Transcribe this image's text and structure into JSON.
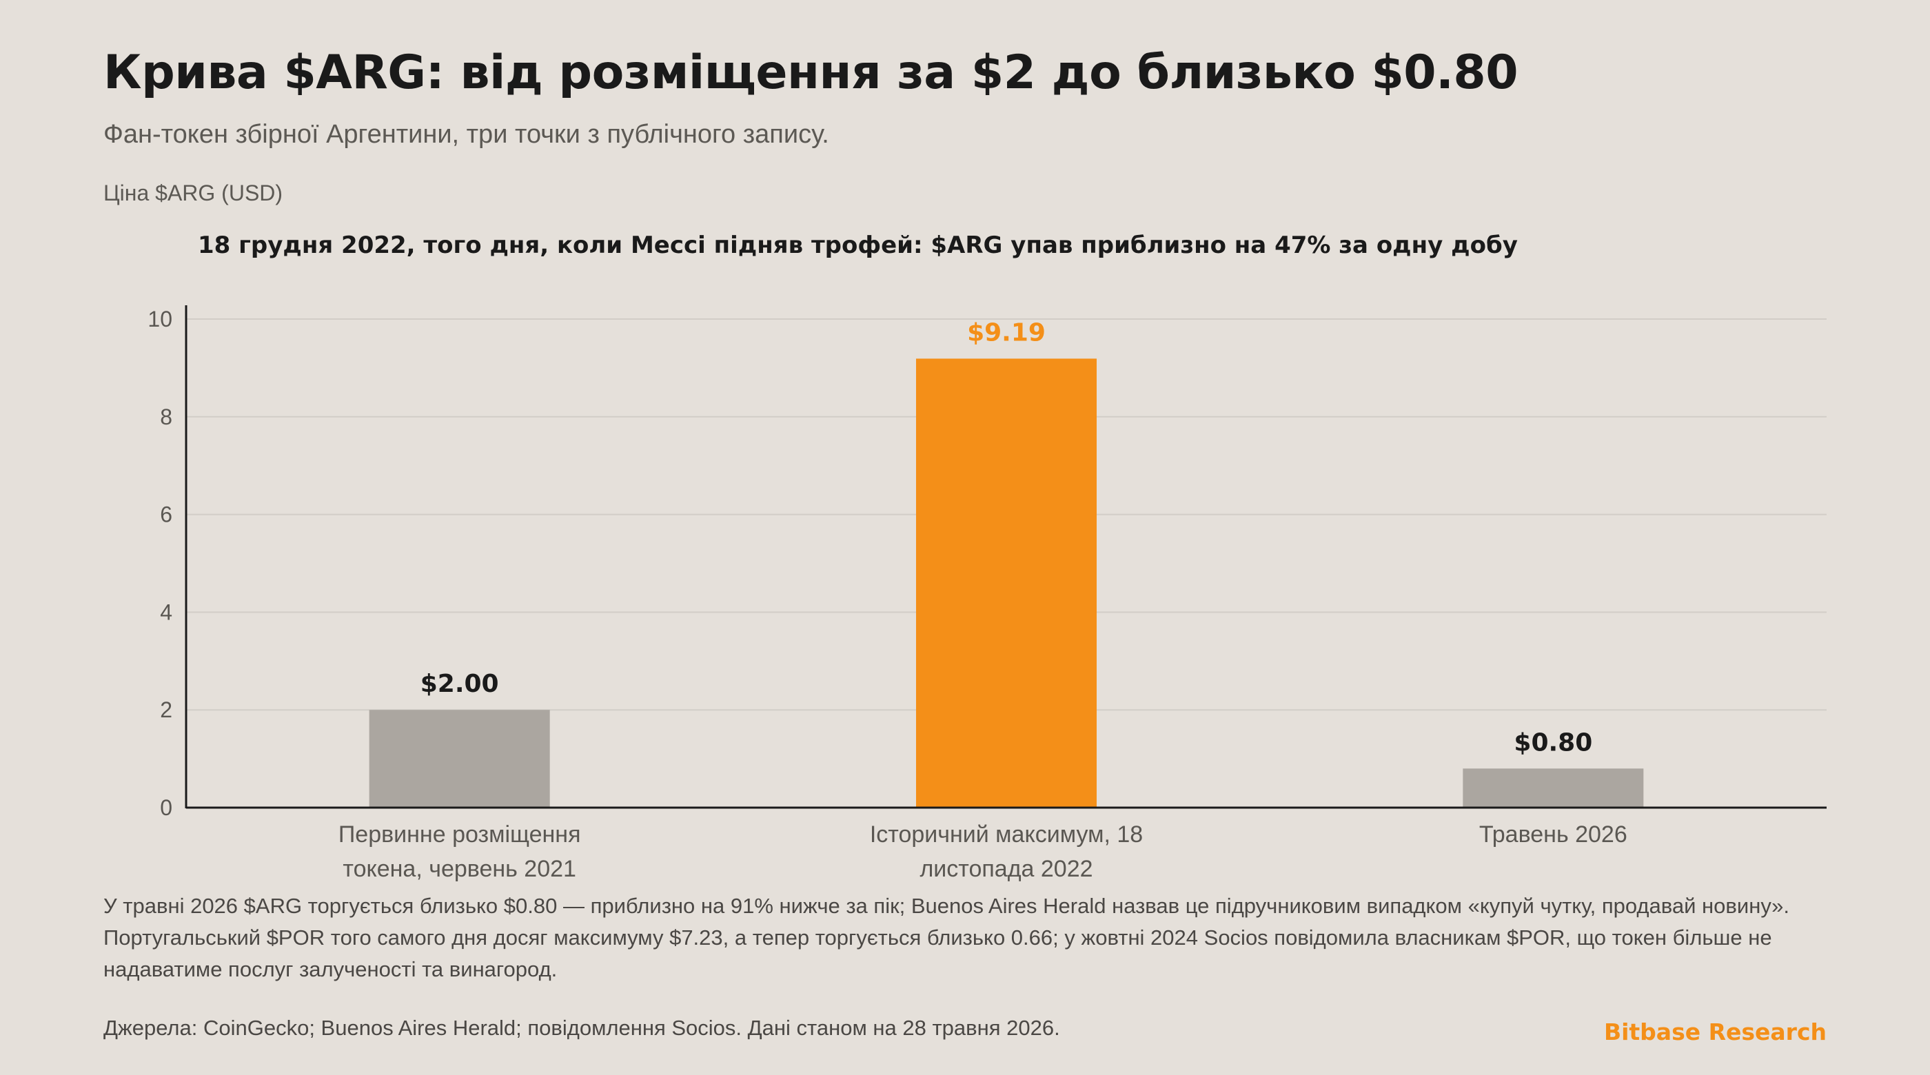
{
  "header": {
    "title": "Крива $ARG: від розміщення за $2 до близько $0.80",
    "subtitle": "Фан-токен збірної Аргентини, три точки з публічного запису.",
    "unit_label": "Ціна $ARG (USD)",
    "annotation": "18 грудня 2022, того дня, коли Мессі підняв трофей: $ARG упав приблизно на 47% за одну добу"
  },
  "chart_data": {
    "type": "bar",
    "title": "Крива $ARG: від розміщення за $2 до близько $0.80",
    "ylabel": "Ціна $ARG (USD)",
    "xlabel": "",
    "ylim": [
      0,
      10
    ],
    "y_ticks": [
      0,
      2,
      4,
      6,
      8,
      10
    ],
    "grid": true,
    "categories": [
      [
        "Первинне розміщення",
        "токена, червень 2021"
      ],
      [
        "Історичний максимум, 18",
        "листопада 2022"
      ],
      [
        "Травень 2026"
      ]
    ],
    "values": [
      2.0,
      9.19,
      0.8
    ],
    "value_labels": [
      "$2.00",
      "$9.19",
      "$0.80"
    ],
    "highlight_index": 1
  },
  "colors": {
    "background": "#e5e0da",
    "bar": "#aba6a0",
    "highlight": "#f48f18",
    "grid": "#d2cdc7",
    "axis": "#1a1a1a",
    "tick_text": "#5a5752",
    "value_text": "#1a1a1a"
  },
  "footer": {
    "note": "У травні 2026 $ARG торгується близько $0.80 — приблизно на 91% нижче за пік; Buenos Aires Herald назвав це підручниковим випадком «купуй чутку, продавай новину». Португальський $POR того самого дня досяг максимуму $7.23, а тепер торгується близько 0.66; у жовтні 2024 Socios повідомила власникам $POR, що токен більше не надаватиме послуг залученості та винагород.",
    "sources": "Джерела: CoinGecko; Buenos Aires Herald; повідомлення Socios. Дані станом на 28 травня 2026.",
    "brand": "Bitbase Research",
    "brand_color": "#f48f18"
  }
}
